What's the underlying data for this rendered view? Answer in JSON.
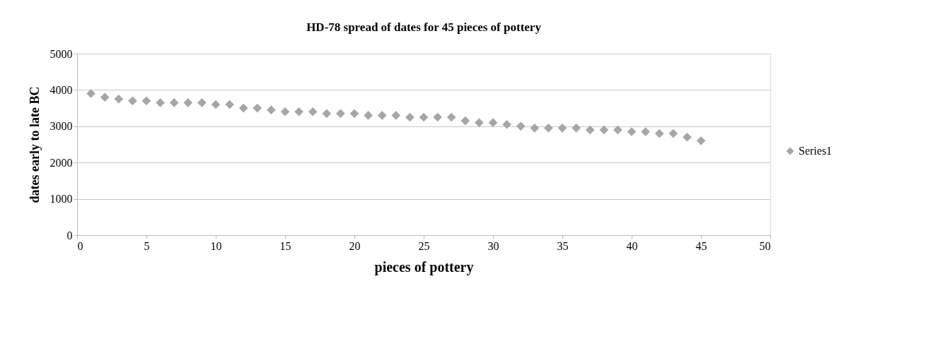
{
  "chart_data": {
    "type": "scatter",
    "title": "HD-78 spread of dates for 45 pieces of pottery",
    "xlabel": "pieces of pottery",
    "ylabel": "dates early to late BC",
    "x": [
      1,
      2,
      3,
      4,
      5,
      6,
      7,
      8,
      9,
      10,
      11,
      12,
      13,
      14,
      15,
      16,
      17,
      18,
      19,
      20,
      21,
      22,
      23,
      24,
      25,
      26,
      27,
      28,
      29,
      30,
      31,
      32,
      33,
      34,
      35,
      36,
      37,
      38,
      39,
      40,
      41,
      42,
      43,
      44,
      45
    ],
    "series": [
      {
        "name": "Series1",
        "color": "#a6a6a6",
        "values": [
          3900,
          3800,
          3750,
          3700,
          3700,
          3650,
          3650,
          3650,
          3650,
          3600,
          3600,
          3500,
          3500,
          3450,
          3400,
          3400,
          3400,
          3350,
          3350,
          3350,
          3300,
          3300,
          3300,
          3250,
          3250,
          3250,
          3250,
          3150,
          3100,
          3100,
          3050,
          3000,
          2950,
          2950,
          2950,
          2950,
          2900,
          2900,
          2900,
          2850,
          2850,
          2800,
          2800,
          2700,
          2600
        ]
      }
    ],
    "xlim": [
      0,
      50
    ],
    "xticks": [
      0,
      5,
      10,
      15,
      20,
      25,
      30,
      35,
      40,
      45,
      50
    ],
    "ylim": [
      0,
      5000
    ],
    "yticks": [
      0,
      1000,
      2000,
      3000,
      4000,
      5000
    ],
    "grid": "y",
    "legend": "right",
    "marker": "diamond"
  }
}
